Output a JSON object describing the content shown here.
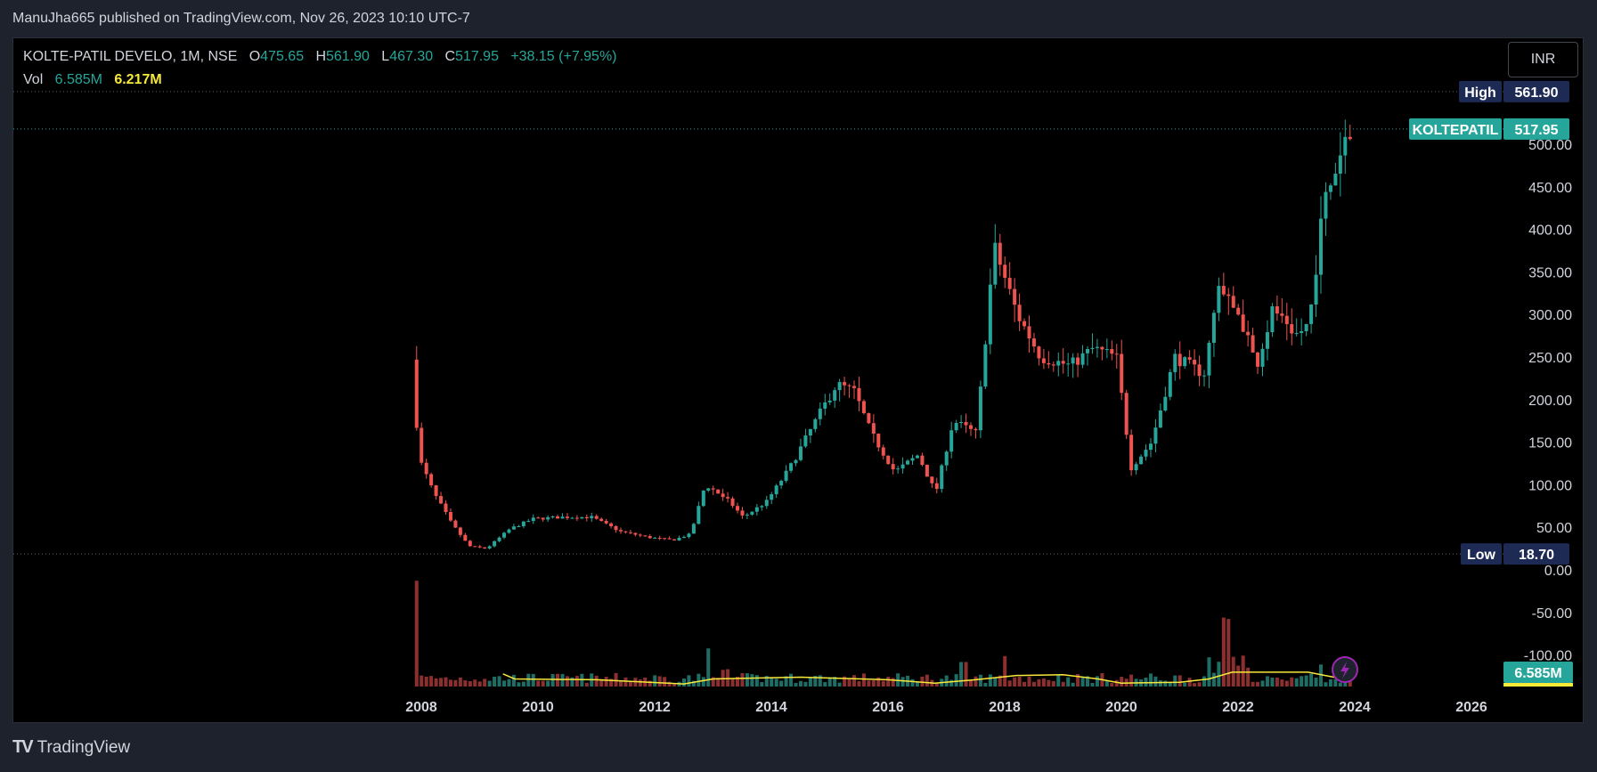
{
  "header": {
    "publish_line": "ManuJha665 published on TradingView.com, Nov 26, 2023 10:10 UTC-7"
  },
  "legend": {
    "symbol_text": "KOLTE-PATIL DEVELO, 1M, NSE",
    "open_label": "O",
    "open": "475.65",
    "high_label": "H",
    "high": "561.90",
    "low_label": "L",
    "low": "467.30",
    "close_label": "C",
    "close": "517.95",
    "change": "+38.15 (+7.95%)",
    "vol_label": "Vol",
    "vol_current": "6.585M",
    "vol_ma": "6.217M"
  },
  "currency_button": "INR",
  "footer": {
    "brand": "TradingView",
    "logo_mark": "TV"
  },
  "colors": {
    "up": "#26a69a",
    "down": "#ef5350",
    "up_volume": "#1f6e66",
    "down_volume": "#8c302f",
    "vol_ma": "#f7e93a",
    "high_low_tag": "#1d2a54",
    "last_price_tag": "#26a69a",
    "lightning": "#9c27b0"
  },
  "chart_data": {
    "type": "candlestick",
    "symbol": "KOLTEPATIL",
    "interval": "1M",
    "x_ticks": [
      "2008",
      "2010",
      "2012",
      "2014",
      "2016",
      "2018",
      "2020",
      "2022",
      "2024",
      "2026"
    ],
    "x_range": [
      2007.9,
      2026.6
    ],
    "y_ticks": [
      "500.00",
      "450.00",
      "400.00",
      "350.00",
      "300.00",
      "250.00",
      "200.00",
      "150.00",
      "100.00",
      "50.00",
      "0.00",
      "-50.00",
      "-100.00"
    ],
    "y_range": [
      -100,
      575
    ],
    "high_marker": {
      "label": "High",
      "value": "561.90"
    },
    "low_marker": {
      "label": "Low",
      "value": "18.70"
    },
    "last_price": {
      "label": "KOLTEPATIL",
      "value": "517.95"
    },
    "volume_badge": "6.585M",
    "price_path": [
      [
        2007.9,
        265
      ],
      [
        2008.05,
        130
      ],
      [
        2008.3,
        90
      ],
      [
        2008.6,
        55
      ],
      [
        2008.9,
        28
      ],
      [
        2009.2,
        25
      ],
      [
        2009.6,
        48
      ],
      [
        2010.0,
        60
      ],
      [
        2010.5,
        62
      ],
      [
        2011.0,
        62
      ],
      [
        2011.5,
        45
      ],
      [
        2012.0,
        38
      ],
      [
        2012.4,
        35
      ],
      [
        2012.7,
        42
      ],
      [
        2012.95,
        100
      ],
      [
        2013.3,
        85
      ],
      [
        2013.6,
        62
      ],
      [
        2014.0,
        80
      ],
      [
        2014.4,
        120
      ],
      [
        2014.8,
        170
      ],
      [
        2015.2,
        218
      ],
      [
        2015.5,
        210
      ],
      [
        2015.8,
        160
      ],
      [
        2016.2,
        115
      ],
      [
        2016.6,
        135
      ],
      [
        2016.9,
        90
      ],
      [
        2017.2,
        175
      ],
      [
        2017.6,
        160
      ],
      [
        2017.9,
        380
      ],
      [
        2018.3,
        300
      ],
      [
        2018.7,
        250
      ],
      [
        2019.2,
        240
      ],
      [
        2019.6,
        260
      ],
      [
        2020.0,
        250
      ],
      [
        2020.25,
        120
      ],
      [
        2020.6,
        150
      ],
      [
        2021.0,
        250
      ],
      [
        2021.5,
        230
      ],
      [
        2021.75,
        330
      ],
      [
        2022.1,
        300
      ],
      [
        2022.4,
        240
      ],
      [
        2022.7,
        310
      ],
      [
        2023.0,
        270
      ],
      [
        2023.3,
        290
      ],
      [
        2023.55,
        430
      ],
      [
        2023.8,
        480
      ],
      [
        2023.95,
        517.95
      ]
    ],
    "volume_scale_max_M": 12,
    "volume_spikes": [
      [
        2007.9,
        12.5
      ],
      [
        2012.95,
        4.5
      ],
      [
        2017.3,
        2.9
      ],
      [
        2018.0,
        3.6
      ],
      [
        2021.8,
        7.6
      ],
      [
        2023.4,
        2.6
      ]
    ],
    "volume_ma_path": [
      [
        2009.4,
        1.5
      ],
      [
        2009.6,
        0.9
      ],
      [
        2011.0,
        0.8
      ],
      [
        2012.5,
        0.3
      ],
      [
        2013.0,
        0.9
      ],
      [
        2014.5,
        1.1
      ],
      [
        2016.0,
        0.8
      ],
      [
        2016.8,
        0.4
      ],
      [
        2017.5,
        0.8
      ],
      [
        2018.2,
        1.3
      ],
      [
        2019.0,
        1.4
      ],
      [
        2019.6,
        0.9
      ],
      [
        2020.0,
        0.4
      ],
      [
        2021.0,
        0.5
      ],
      [
        2021.5,
        0.9
      ],
      [
        2021.9,
        1.7
      ],
      [
        2022.5,
        1.7
      ],
      [
        2023.2,
        1.7
      ],
      [
        2023.8,
        0.9
      ]
    ]
  }
}
